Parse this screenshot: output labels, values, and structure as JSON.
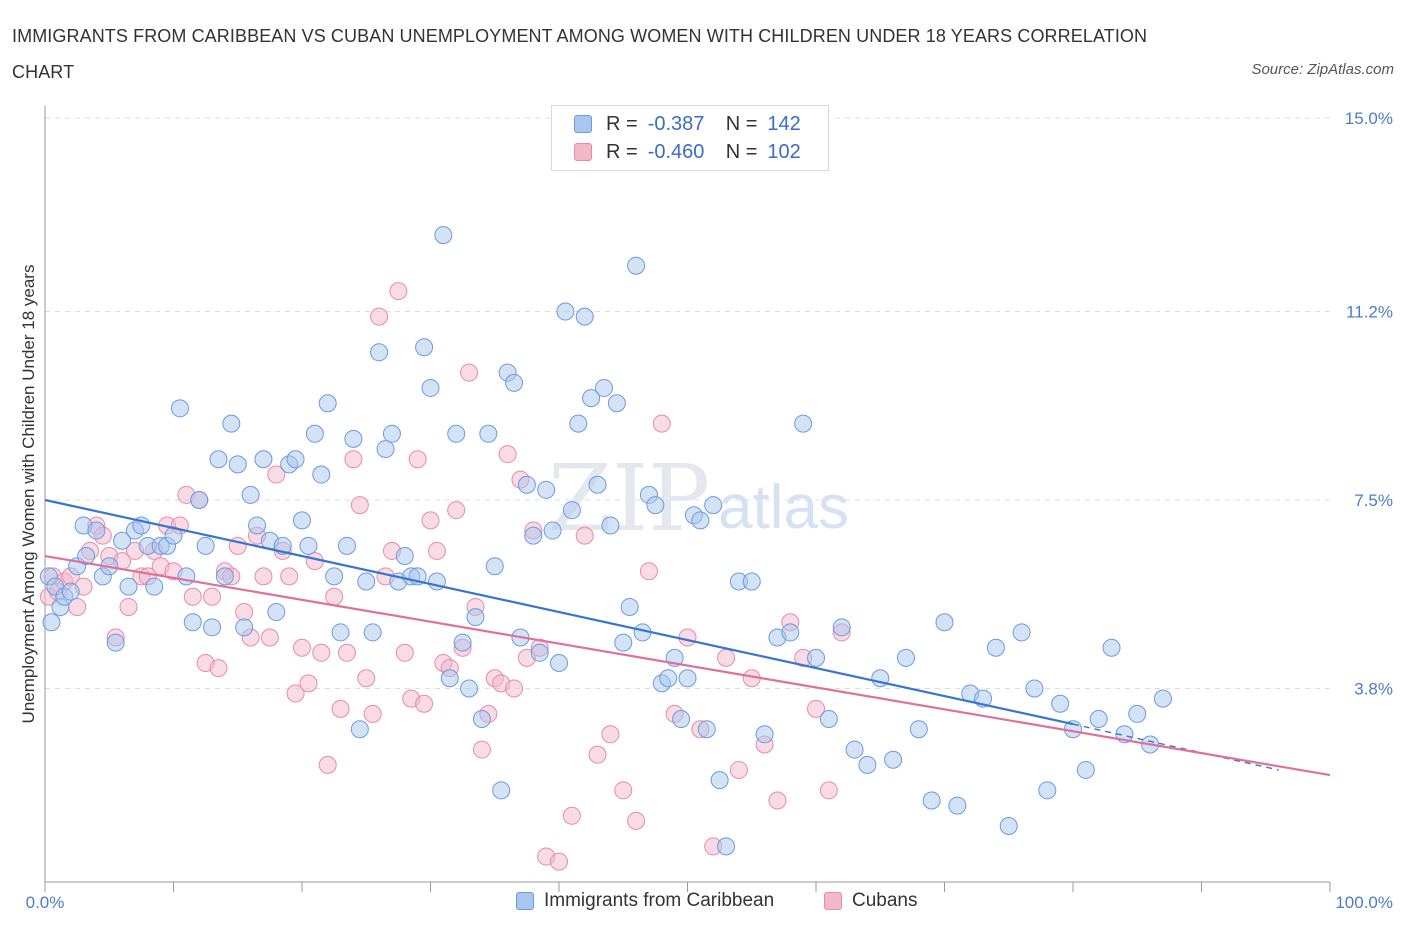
{
  "title": "IMMIGRANTS FROM CARIBBEAN VS CUBAN UNEMPLOYMENT AMONG WOMEN WITH CHILDREN UNDER 18 YEARS CORRELATION CHART",
  "source": "Source: ZipAtlas.com",
  "watermark": {
    "zip": "ZIP",
    "atlas": "atlas"
  },
  "legend_top": [
    {
      "r_label": "R =",
      "r_value": "-0.387",
      "n_label": "N =",
      "n_value": "142"
    },
    {
      "r_label": "R =",
      "r_value": "-0.460",
      "n_label": "N =",
      "n_value": "102"
    }
  ],
  "legend_bottom": [
    "Immigrants from Caribbean",
    "Cubans"
  ],
  "colors": {
    "blue_fill": "#a9c6ee",
    "blue_stroke": "#6b9be0",
    "blue_line": "#3874d0",
    "pink_fill": "#f4b8cb",
    "pink_stroke": "#e98aa9",
    "pink_line": "#e0709a",
    "grid": "#dcdcdc",
    "tick_text": "#4a7cc9"
  },
  "chart_data": {
    "type": "scatter",
    "title": "IMMIGRANTS FROM CARIBBEAN VS CUBAN UNEMPLOYMENT AMONG WOMEN WITH CHILDREN UNDER 18 YEARS CORRELATION CHART",
    "xlabel": "",
    "ylabel": "Unemployment Among Women with Children Under 18 years",
    "xlim": [
      0,
      100
    ],
    "ylim": [
      0,
      15.0
    ],
    "x_tick_labels": [
      "0.0%",
      "100.0%"
    ],
    "y_ticks": [
      3.8,
      7.5,
      11.2,
      15.0
    ],
    "y_tick_labels": [
      "3.8%",
      "7.5%",
      "11.2%",
      "15.0%"
    ],
    "grid": true,
    "legend_position": "top-center",
    "series": [
      {
        "name": "Immigrants from Caribbean",
        "R": -0.387,
        "N": 142,
        "trend": {
          "x": [
            0,
            80
          ],
          "y": [
            7.5,
            3.1
          ],
          "dashed_extension": {
            "x": [
              80,
              96
            ],
            "y": [
              3.1,
              2.2
            ]
          }
        },
        "points": [
          [
            0.3,
            6.0
          ],
          [
            0.5,
            5.1
          ],
          [
            0.8,
            5.8
          ],
          [
            1.2,
            5.4
          ],
          [
            1.5,
            5.6
          ],
          [
            2.0,
            5.7
          ],
          [
            2.5,
            6.2
          ],
          [
            3.0,
            7.0
          ],
          [
            3.2,
            6.4
          ],
          [
            4.0,
            6.9
          ],
          [
            4.5,
            6.0
          ],
          [
            5.0,
            6.2
          ],
          [
            5.5,
            4.7
          ],
          [
            6.0,
            6.7
          ],
          [
            6.5,
            5.8
          ],
          [
            7.0,
            6.9
          ],
          [
            7.5,
            7.0
          ],
          [
            8.0,
            6.6
          ],
          [
            8.5,
            5.8
          ],
          [
            9.0,
            6.6
          ],
          [
            9.5,
            6.6
          ],
          [
            10.0,
            6.8
          ],
          [
            10.5,
            9.3
          ],
          [
            11.0,
            6.0
          ],
          [
            11.5,
            5.1
          ],
          [
            12.0,
            7.5
          ],
          [
            12.5,
            6.6
          ],
          [
            13.0,
            5.0
          ],
          [
            13.5,
            8.3
          ],
          [
            14.0,
            6.0
          ],
          [
            14.5,
            9.0
          ],
          [
            15.0,
            8.2
          ],
          [
            15.5,
            5.0
          ],
          [
            16.0,
            7.6
          ],
          [
            16.5,
            7.0
          ],
          [
            17.0,
            8.3
          ],
          [
            17.5,
            6.7
          ],
          [
            18.0,
            5.3
          ],
          [
            18.5,
            6.6
          ],
          [
            19.0,
            8.2
          ],
          [
            19.5,
            8.3
          ],
          [
            20.0,
            7.1
          ],
          [
            20.5,
            6.6
          ],
          [
            21.0,
            8.8
          ],
          [
            21.5,
            8.0
          ],
          [
            22.0,
            9.4
          ],
          [
            22.5,
            6.0
          ],
          [
            23.0,
            4.9
          ],
          [
            23.5,
            6.6
          ],
          [
            24.0,
            8.7
          ],
          [
            24.5,
            3.0
          ],
          [
            25.0,
            5.9
          ],
          [
            25.5,
            4.9
          ],
          [
            26.0,
            10.4
          ],
          [
            26.5,
            8.5
          ],
          [
            27.0,
            8.8
          ],
          [
            27.5,
            5.9
          ],
          [
            28.0,
            6.4
          ],
          [
            28.5,
            6.0
          ],
          [
            29.0,
            6.0
          ],
          [
            29.5,
            10.5
          ],
          [
            30.0,
            9.7
          ],
          [
            30.5,
            5.9
          ],
          [
            31.0,
            12.7
          ],
          [
            31.5,
            4.0
          ],
          [
            32.0,
            8.8
          ],
          [
            32.5,
            4.7
          ],
          [
            33.0,
            3.8
          ],
          [
            33.5,
            5.2
          ],
          [
            34.0,
            3.2
          ],
          [
            34.5,
            8.8
          ],
          [
            35.0,
            6.2
          ],
          [
            35.5,
            1.8
          ],
          [
            36.0,
            10.0
          ],
          [
            36.5,
            9.8
          ],
          [
            37.0,
            4.8
          ],
          [
            37.5,
            7.8
          ],
          [
            38.0,
            6.8
          ],
          [
            38.5,
            4.5
          ],
          [
            39.0,
            7.7
          ],
          [
            39.5,
            6.9
          ],
          [
            40.0,
            4.3
          ],
          [
            40.5,
            11.2
          ],
          [
            41.0,
            7.3
          ],
          [
            41.5,
            9.0
          ],
          [
            42.0,
            11.1
          ],
          [
            42.5,
            9.5
          ],
          [
            43.0,
            7.8
          ],
          [
            43.5,
            9.7
          ],
          [
            44.0,
            7.0
          ],
          [
            44.5,
            9.4
          ],
          [
            45.0,
            4.7
          ],
          [
            45.5,
            5.4
          ],
          [
            46.0,
            12.1
          ],
          [
            46.5,
            4.9
          ],
          [
            47.0,
            7.6
          ],
          [
            47.5,
            7.4
          ],
          [
            48.0,
            3.9
          ],
          [
            48.5,
            4.0
          ],
          [
            49.0,
            4.4
          ],
          [
            49.5,
            3.2
          ],
          [
            50.0,
            4.0
          ],
          [
            50.5,
            7.2
          ],
          [
            51.0,
            7.1
          ],
          [
            51.5,
            3.0
          ],
          [
            52.0,
            7.4
          ],
          [
            52.5,
            2.0
          ],
          [
            53.0,
            0.7
          ],
          [
            54.0,
            5.9
          ],
          [
            55.0,
            5.9
          ],
          [
            56.0,
            2.9
          ],
          [
            57.0,
            4.8
          ],
          [
            58.0,
            4.9
          ],
          [
            59.0,
            9.0
          ],
          [
            60.0,
            4.4
          ],
          [
            61.0,
            3.2
          ],
          [
            62.0,
            5.0
          ],
          [
            63.0,
            2.6
          ],
          [
            64.0,
            2.3
          ],
          [
            65.0,
            4.0
          ],
          [
            66.0,
            2.4
          ],
          [
            67.0,
            4.4
          ],
          [
            68.0,
            3.0
          ],
          [
            69.0,
            1.6
          ],
          [
            70.0,
            5.1
          ],
          [
            71.0,
            1.5
          ],
          [
            72.0,
            3.7
          ],
          [
            73.0,
            3.6
          ],
          [
            74.0,
            4.6
          ],
          [
            75.0,
            1.1
          ],
          [
            76.0,
            4.9
          ],
          [
            77.0,
            3.8
          ],
          [
            78.0,
            1.8
          ],
          [
            79.0,
            3.5
          ],
          [
            80.0,
            3.0
          ],
          [
            81.0,
            2.2
          ],
          [
            82.0,
            3.2
          ],
          [
            83.0,
            4.6
          ],
          [
            84.0,
            2.9
          ],
          [
            85.0,
            3.3
          ],
          [
            86.0,
            2.7
          ],
          [
            87.0,
            3.6
          ]
        ]
      },
      {
        "name": "Cubans",
        "R": -0.46,
        "N": 102,
        "trend": {
          "x": [
            0,
            100
          ],
          "y": [
            6.4,
            2.1
          ]
        },
        "points": [
          [
            0.3,
            5.6
          ],
          [
            0.6,
            6.0
          ],
          [
            1.0,
            5.7
          ],
          [
            1.5,
            5.9
          ],
          [
            2.0,
            6.0
          ],
          [
            2.5,
            5.4
          ],
          [
            3.0,
            5.8
          ],
          [
            3.5,
            6.5
          ],
          [
            4.0,
            7.0
          ],
          [
            4.5,
            6.8
          ],
          [
            5.0,
            6.4
          ],
          [
            5.5,
            4.8
          ],
          [
            6.0,
            6.3
          ],
          [
            6.5,
            5.4
          ],
          [
            7.0,
            6.5
          ],
          [
            7.5,
            6.0
          ],
          [
            8.0,
            6.0
          ],
          [
            8.5,
            6.5
          ],
          [
            9.0,
            6.2
          ],
          [
            9.5,
            7.0
          ],
          [
            10.0,
            6.1
          ],
          [
            10.5,
            7.0
          ],
          [
            11.0,
            7.6
          ],
          [
            11.5,
            5.6
          ],
          [
            12.0,
            7.5
          ],
          [
            12.5,
            4.3
          ],
          [
            13.0,
            5.6
          ],
          [
            13.5,
            4.2
          ],
          [
            14.0,
            6.1
          ],
          [
            14.5,
            6.0
          ],
          [
            15.0,
            6.6
          ],
          [
            15.5,
            5.3
          ],
          [
            16.0,
            4.8
          ],
          [
            16.5,
            6.8
          ],
          [
            17.0,
            6.0
          ],
          [
            17.5,
            4.8
          ],
          [
            18.0,
            8.0
          ],
          [
            18.5,
            6.5
          ],
          [
            19.0,
            6.0
          ],
          [
            19.5,
            3.7
          ],
          [
            20.0,
            4.6
          ],
          [
            20.5,
            3.9
          ],
          [
            21.0,
            6.3
          ],
          [
            21.5,
            4.5
          ],
          [
            22.0,
            2.3
          ],
          [
            22.5,
            5.6
          ],
          [
            23.0,
            3.4
          ],
          [
            23.5,
            4.5
          ],
          [
            24.0,
            8.3
          ],
          [
            24.5,
            7.4
          ],
          [
            25.0,
            4.0
          ],
          [
            25.5,
            3.3
          ],
          [
            26.0,
            11.1
          ],
          [
            26.5,
            6.0
          ],
          [
            27.0,
            6.5
          ],
          [
            27.5,
            11.6
          ],
          [
            28.0,
            4.5
          ],
          [
            28.5,
            3.6
          ],
          [
            29.0,
            8.3
          ],
          [
            29.5,
            3.5
          ],
          [
            30.0,
            7.1
          ],
          [
            30.5,
            6.5
          ],
          [
            31.0,
            4.3
          ],
          [
            31.5,
            4.2
          ],
          [
            32.0,
            7.3
          ],
          [
            32.5,
            4.6
          ],
          [
            33.0,
            10.0
          ],
          [
            33.5,
            5.4
          ],
          [
            34.0,
            2.6
          ],
          [
            34.5,
            3.3
          ],
          [
            35.0,
            4.0
          ],
          [
            35.5,
            3.9
          ],
          [
            36.0,
            8.4
          ],
          [
            36.5,
            3.8
          ],
          [
            37.0,
            7.9
          ],
          [
            37.5,
            4.4
          ],
          [
            38.0,
            6.9
          ],
          [
            38.5,
            4.6
          ],
          [
            39.0,
            0.5
          ],
          [
            40.0,
            0.4
          ],
          [
            41.0,
            1.3
          ],
          [
            42.0,
            6.8
          ],
          [
            43.0,
            2.5
          ],
          [
            44.0,
            2.9
          ],
          [
            45.0,
            1.8
          ],
          [
            46.0,
            1.2
          ],
          [
            47.0,
            6.1
          ],
          [
            48.0,
            9.0
          ],
          [
            49.0,
            3.3
          ],
          [
            50.0,
            4.8
          ],
          [
            51.0,
            3.0
          ],
          [
            52.0,
            0.7
          ],
          [
            53.0,
            4.4
          ],
          [
            54.0,
            2.2
          ],
          [
            55.0,
            4.0
          ],
          [
            56.0,
            2.7
          ],
          [
            57.0,
            1.6
          ],
          [
            58.0,
            5.1
          ],
          [
            59.0,
            4.4
          ],
          [
            60.0,
            3.4
          ],
          [
            61.0,
            1.8
          ],
          [
            62.0,
            4.9
          ]
        ]
      }
    ]
  }
}
